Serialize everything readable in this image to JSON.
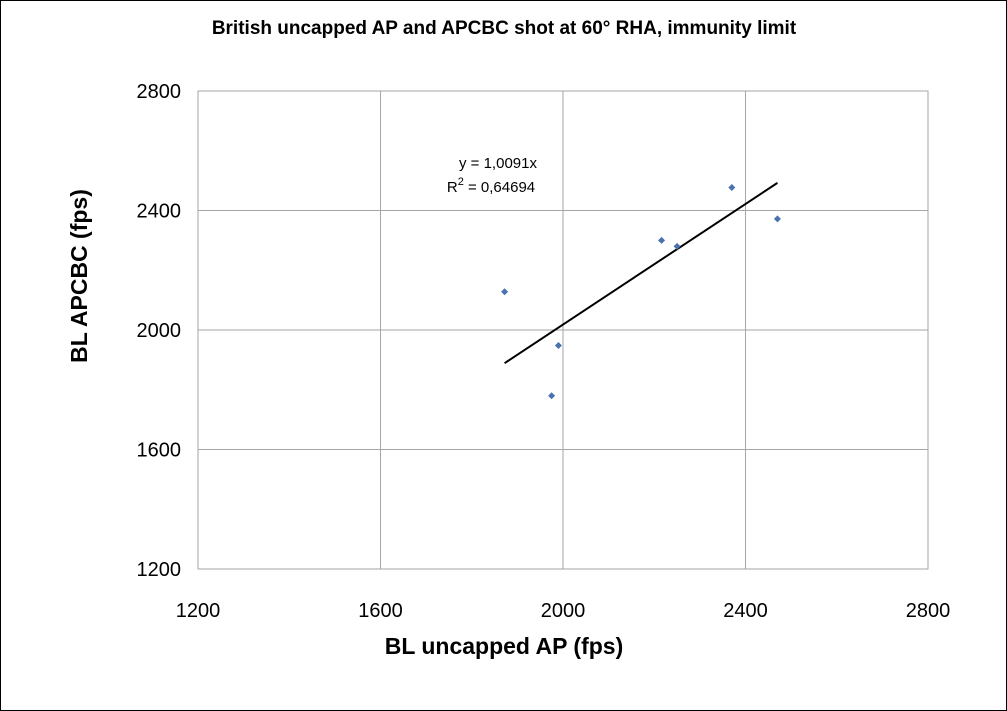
{
  "chart_data": {
    "type": "scatter",
    "title": "British uncapped AP and APCBC shot at 60° RHA, immunity limit",
    "xlabel": "BL uncapped AP (fps)",
    "ylabel": "BL APCBC (fps)",
    "xlim": [
      1200,
      2800
    ],
    "ylim": [
      1200,
      2800
    ],
    "xticks": [
      "1200",
      "1600",
      "2000",
      "2400",
      "2800"
    ],
    "yticks": [
      "1200",
      "1600",
      "2000",
      "2400",
      "2800"
    ],
    "grid": true,
    "legend": "none",
    "marker_color": "#4a72b0",
    "trendline_color": "#000000",
    "points": [
      {
        "x": 1872,
        "y": 2128
      },
      {
        "x": 1975,
        "y": 1780
      },
      {
        "x": 1990,
        "y": 1948
      },
      {
        "x": 2216,
        "y": 2300
      },
      {
        "x": 2250,
        "y": 2280
      },
      {
        "x": 2370,
        "y": 2477
      },
      {
        "x": 2470,
        "y": 2372
      }
    ],
    "trendline": {
      "type": "linear-through-origin",
      "slope": 1.0091,
      "x_range": [
        1872,
        2470
      ],
      "equation_text": "y = 1,0091x",
      "r2_prefix": "R",
      "r2_sup": "2",
      "r2_value_text": " = 0,64694"
    }
  }
}
